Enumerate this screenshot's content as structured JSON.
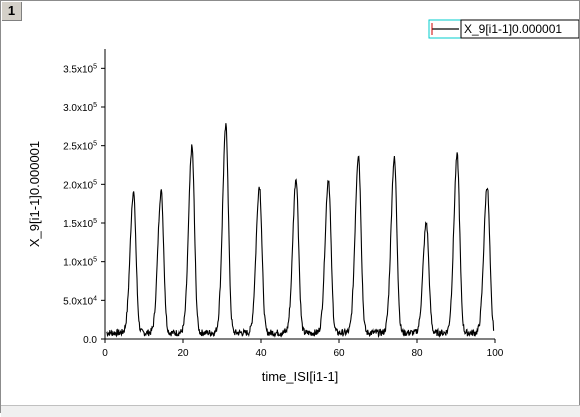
{
  "window": {
    "layer_label": "1"
  },
  "legend": {
    "text": "X_9[i1-1]0.000001",
    "swatch_color": "#000000",
    "border_color": "#00cccc"
  },
  "chart_data": {
    "type": "line",
    "title": "",
    "xlabel": "time_ISI[i1-1]",
    "ylabel": "X_9[i1-1]0.000001",
    "xlim": [
      0,
      100
    ],
    "ylim": [
      0,
      375000
    ],
    "x_ticks": [
      0,
      20,
      40,
      60,
      80,
      100
    ],
    "x_tick_labels": [
      "0",
      "20",
      "40",
      "60",
      "80",
      "100"
    ],
    "y_ticks": [
      0,
      50000,
      100000,
      150000,
      200000,
      250000,
      300000,
      350000
    ],
    "y_tick_labels": [
      {
        "mantissa": "0.0",
        "exp": ""
      },
      {
        "mantissa": "5.0x10",
        "exp": "4"
      },
      {
        "mantissa": "1.0x10",
        "exp": "5"
      },
      {
        "mantissa": "1.5x10",
        "exp": "5"
      },
      {
        "mantissa": "2.0x10",
        "exp": "5"
      },
      {
        "mantissa": "2.5x10",
        "exp": "5"
      },
      {
        "mantissa": "3.0x10",
        "exp": "5"
      },
      {
        "mantissa": "3.5x10",
        "exp": "5"
      }
    ],
    "grid": false,
    "legend_position": "top-right",
    "series": [
      {
        "name": "X_9[i1-1]0.000001",
        "color": "#000000",
        "baseline": 8000,
        "peaks": [
          {
            "x": 7.3,
            "y": 190000
          },
          {
            "x": 14.4,
            "y": 191000
          },
          {
            "x": 22.3,
            "y": 248000
          },
          {
            "x": 31.0,
            "y": 275000
          },
          {
            "x": 39.6,
            "y": 198000
          },
          {
            "x": 49.0,
            "y": 208000
          },
          {
            "x": 57.3,
            "y": 207000
          },
          {
            "x": 65.0,
            "y": 238000
          },
          {
            "x": 74.2,
            "y": 233000
          },
          {
            "x": 82.4,
            "y": 150000
          },
          {
            "x": 90.3,
            "y": 237000
          },
          {
            "x": 98.0,
            "y": 198000
          }
        ]
      }
    ]
  }
}
